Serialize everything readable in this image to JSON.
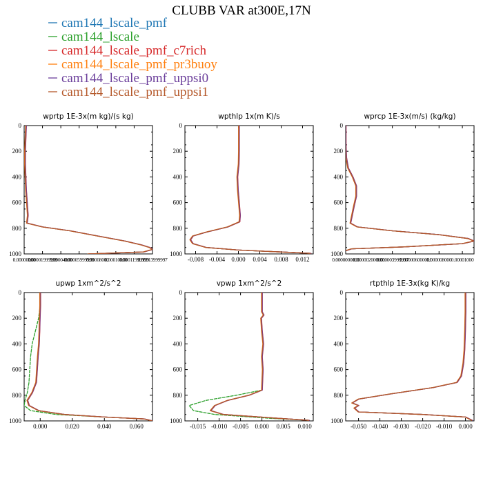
{
  "figure": {
    "title": "CLUBB VAR at300E,17N"
  },
  "legend": [
    {
      "label": "cam144_lscale_pmf",
      "color": "#1f77b4",
      "dash": ""
    },
    {
      "label": "cam144_lscale",
      "color": "#2ca02c",
      "dash": ""
    },
    {
      "label": "cam144_lscale_pmf_c7rich",
      "color": "#d62728",
      "dash": ""
    },
    {
      "label": "cam144_lscale_pmf_pr3buoy",
      "color": "#ff7f0e",
      "dash": ""
    },
    {
      "label": "cam144_lscale_pmf_uppsi0",
      "color": "#6a3d9a",
      "dash": ""
    },
    {
      "label": "cam144_lscale_pmf_uppsi1",
      "color": "#b5592b",
      "dash": ""
    }
  ],
  "chart_data": [
    {
      "type": "line",
      "title": "wprtp   1E-3x(m kg)/(s kg)",
      "xlim": [
        0,
        0.00014
      ],
      "ylim": [
        1000,
        0
      ],
      "xticks": [
        0,
        2e-05,
        4e-05,
        6e-05,
        8e-05,
        0.0001,
        0.00012,
        0.00014
      ],
      "xtick_labels": [
        "0.00000000",
        "0.00001999999",
        "0.00004000",
        "0.00005999999",
        "0.00008000",
        "0.00010000",
        "0.00011999999",
        "0.00013999997"
      ],
      "yticks": [
        0,
        200,
        400,
        600,
        800,
        1000
      ],
      "series": [
        {
          "x": [
            2e-06,
            1.5e-06,
            1e-06,
            1e-06,
            1.5e-06,
            2e-06,
            3e-06,
            4e-06,
            3e-06,
            2e-05,
            5e-05,
            8e-05,
            0.00011,
            0.000128,
            0.000137,
            0.00014,
            0.00013,
            7e-05
          ],
          "y": [
            0,
            100,
            200,
            300,
            400,
            500,
            600,
            700,
            760,
            790,
            820,
            860,
            900,
            930,
            950,
            965,
            985,
            1000
          ]
        }
      ]
    },
    {
      "type": "line",
      "title": "wpthlp   1x(m K)/s",
      "xlim": [
        -0.01,
        0.014
      ],
      "ylim": [
        1000,
        0
      ],
      "xticks": [
        -0.008,
        -0.004,
        0,
        0.004,
        0.008,
        0.012
      ],
      "xtick_labels": [
        "-0.008",
        "-0.004",
        "0.000",
        "0.004",
        "0.008",
        "0.012"
      ],
      "yticks": [
        0,
        200,
        400,
        600,
        800,
        1000
      ],
      "series": [
        {
          "x": [
            0.0001,
            0.0001,
            0.0001,
            5e-05,
            -0.0002,
            -0.0001,
            0.0001,
            0.0003,
            0.0002,
            -0.002,
            -0.006,
            -0.0085,
            -0.009,
            -0.0085,
            -0.006,
            0.0,
            0.008,
            0.0135
          ],
          "y": [
            0,
            100,
            200,
            300,
            400,
            500,
            600,
            700,
            750,
            790,
            830,
            860,
            890,
            920,
            950,
            970,
            985,
            995
          ]
        }
      ]
    },
    {
      "type": "line",
      "title": "wprcp   1E-3x(m/s) (kg/kg)",
      "xlim": [
        0,
        1.1e-05
      ],
      "ylim": [
        1000,
        0
      ],
      "xticks": [
        0,
        2e-06,
        4e-06,
        6e-06,
        8e-06,
        1e-05
      ],
      "xtick_labels": [
        "0.0000000000",
        "0.000002000001",
        "0.000003999997",
        "0.000006000001",
        "0.000008000",
        "0.00001000"
      ],
      "yticks": [
        0,
        200,
        400,
        600,
        800,
        1000
      ],
      "series": [
        {
          "x": [
            0.0,
            0.0,
            5e-08,
            2e-07,
            6e-07,
            9e-07,
            9e-07,
            7e-07,
            4e-07,
            1e-06,
            4e-06,
            8e-06,
            1.05e-05,
            1.1e-05,
            1e-05,
            5e-06,
            5e-07,
            0.0
          ],
          "y": [
            0,
            150,
            250,
            330,
            400,
            470,
            550,
            630,
            760,
            790,
            820,
            850,
            880,
            900,
            920,
            945,
            960,
            975
          ]
        }
      ]
    },
    {
      "type": "line",
      "title": "upwp   1xm^2/s^2",
      "xlim": [
        -0.01,
        0.07
      ],
      "ylim": [
        1000,
        0
      ],
      "xticks": [
        0,
        0.02,
        0.04,
        0.06
      ],
      "xtick_labels": [
        "0.000",
        "0.020",
        "0.040",
        "0.060"
      ],
      "yticks": [
        0,
        200,
        400,
        600,
        800,
        1000
      ],
      "series": [
        {
          "x": [
            0.0,
            0.0,
            -0.0003,
            -0.0005,
            -0.0008,
            -0.0015,
            -0.002,
            -0.0025,
            -0.005,
            -0.008,
            -0.007,
            -0.001,
            0.015,
            0.04,
            0.065,
            0.07
          ],
          "y": [
            0,
            100,
            200,
            300,
            400,
            500,
            600,
            700,
            780,
            840,
            880,
            920,
            950,
            970,
            985,
            1000
          ]
        },
        {
          "x": [
            0.0,
            0.0,
            -0.001,
            -0.003,
            -0.005,
            -0.006,
            -0.0065,
            -0.007,
            -0.008,
            -0.0095,
            -0.01,
            -0.006,
            0.01,
            0.04,
            0.065,
            0.07
          ],
          "y": [
            0,
            100,
            200,
            300,
            400,
            500,
            600,
            700,
            780,
            840,
            880,
            920,
            950,
            970,
            985,
            1000
          ]
        }
      ]
    },
    {
      "type": "line",
      "title": "vpwp   1xm^2/s^2",
      "xlim": [
        -0.018,
        0.012
      ],
      "ylim": [
        1000,
        0
      ],
      "xticks": [
        -0.015,
        -0.01,
        -0.005,
        0,
        0.005,
        0.01
      ],
      "xtick_labels": [
        "-0.015",
        "-0.010",
        "-0.005",
        "0.000",
        "0.005",
        "0.010"
      ],
      "yticks": [
        0,
        200,
        400,
        600,
        800,
        1000
      ],
      "series": [
        {
          "x": [
            0.0,
            0.0,
            0.0,
            0.0004,
            -0.0002,
            0.0,
            0.0003,
            0.0,
            0.0002,
            0.0,
            -0.003,
            -0.008,
            -0.011,
            -0.012,
            -0.009,
            0.004,
            0.011
          ],
          "y": [
            0,
            100,
            150,
            175,
            200,
            300,
            400,
            500,
            600,
            760,
            800,
            840,
            880,
            920,
            950,
            980,
            995
          ]
        },
        {
          "x": [
            0.0,
            0.0,
            0.0,
            0.0004,
            -0.0002,
            0.0,
            0.0003,
            0.0,
            0.0002,
            0.0,
            -0.006,
            -0.013,
            -0.017,
            -0.016,
            -0.011,
            0.002,
            0.011
          ],
          "y": [
            0,
            100,
            150,
            175,
            200,
            300,
            400,
            500,
            600,
            760,
            800,
            840,
            880,
            920,
            950,
            980,
            995
          ]
        }
      ]
    },
    {
      "type": "line",
      "title": "rtpthlp   1E-3x(kg K)/kg",
      "xlim": [
        -0.056,
        0.004
      ],
      "ylim": [
        1000,
        0
      ],
      "xticks": [
        -0.05,
        -0.04,
        -0.03,
        -0.02,
        -0.01,
        0
      ],
      "xtick_labels": [
        "-0.050",
        "-0.040",
        "-0.030",
        "-0.020",
        "-0.010",
        "0.000"
      ],
      "yticks": [
        0,
        200,
        400,
        600,
        800,
        1000
      ],
      "series": [
        {
          "x": [
            0.0,
            0.0,
            -0.0002,
            -0.0005,
            -0.001,
            -0.002,
            -0.004,
            -0.015,
            -0.035,
            -0.05,
            -0.053,
            -0.05,
            -0.052,
            -0.05,
            -0.02,
            0.0,
            0.003
          ],
          "y": [
            0,
            150,
            300,
            450,
            550,
            650,
            700,
            740,
            790,
            830,
            860,
            880,
            900,
            930,
            950,
            970,
            995
          ]
        }
      ]
    }
  ]
}
